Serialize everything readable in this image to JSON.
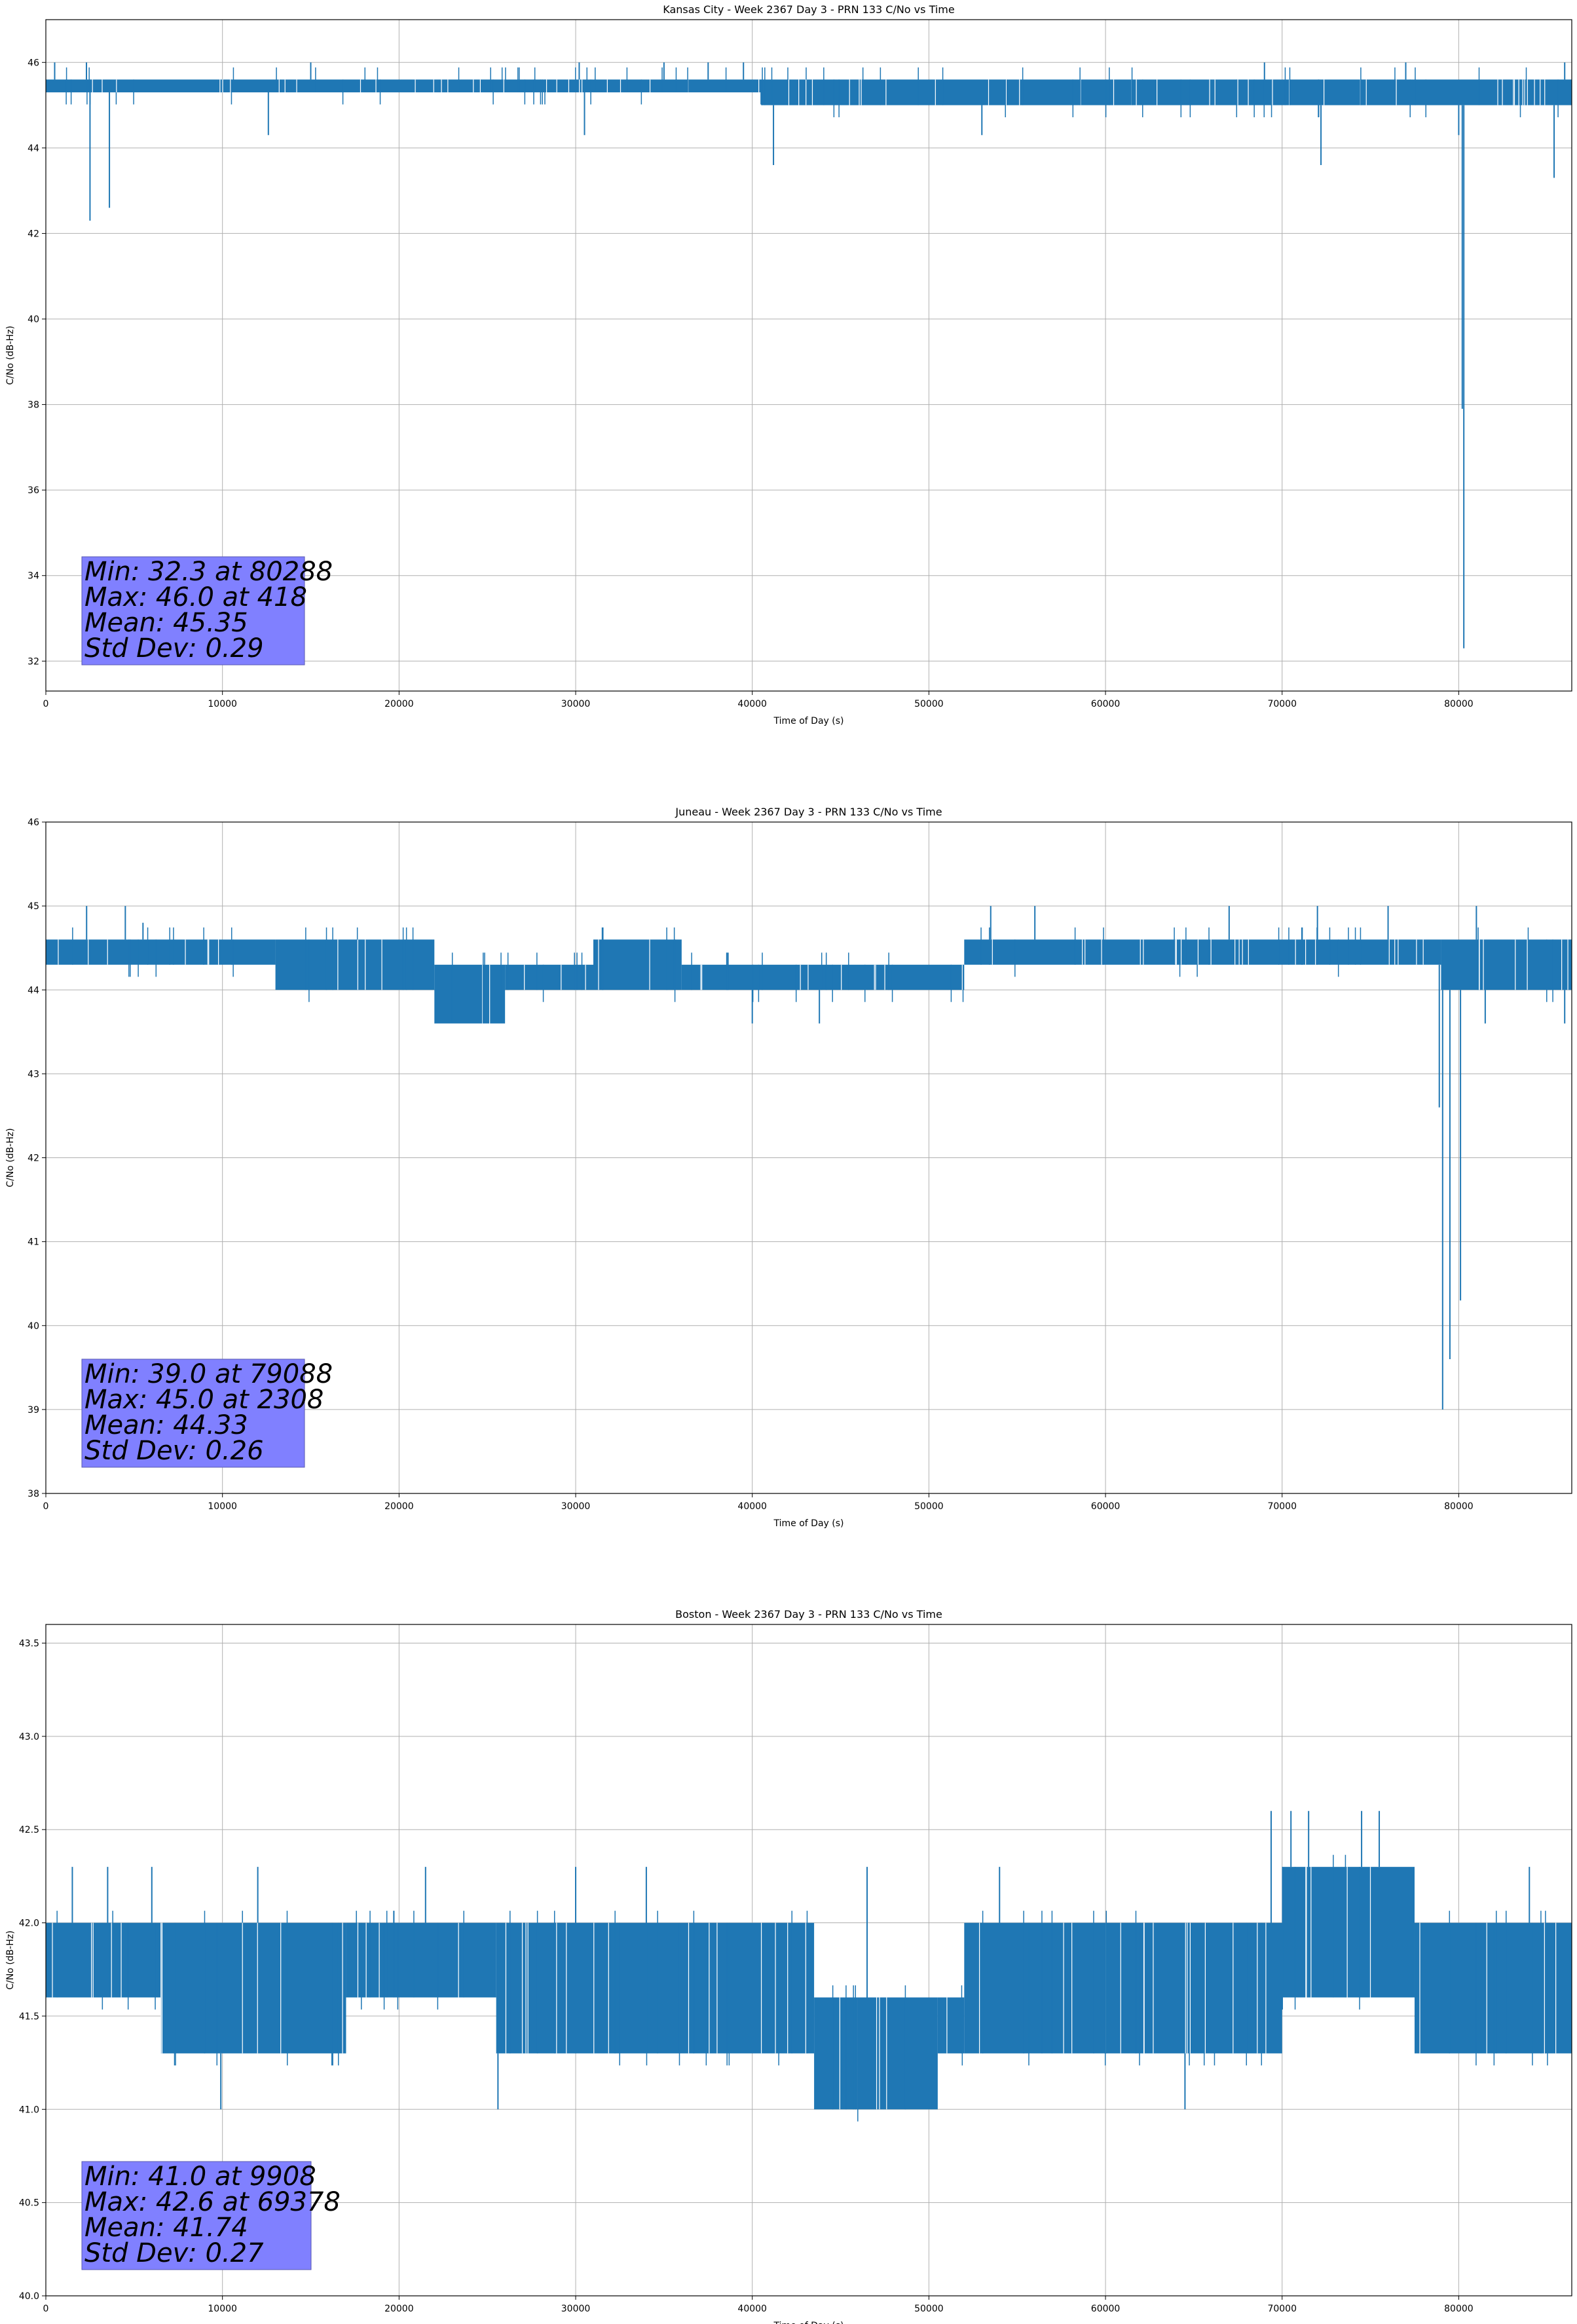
{
  "chart_data": [
    {
      "type": "line",
      "title": "Kansas City - Week 2367 Day 3 - PRN 133 C/No vs Time",
      "xlabel": "Time of Day (s)",
      "ylabel": "C/No (dB-Hz)",
      "xlim": [
        0,
        86400
      ],
      "ylim": [
        31.3,
        47.0
      ],
      "xticks": [
        0,
        10000,
        20000,
        30000,
        40000,
        50000,
        60000,
        70000,
        80000
      ],
      "yticks": [
        32,
        34,
        36,
        38,
        40,
        42,
        44,
        46
      ],
      "ytick_labels": [
        "32",
        "34",
        "36",
        "38",
        "40",
        "42",
        "44",
        "46"
      ],
      "grid": true,
      "series_color": "#1f77b4",
      "band_segments": [
        {
          "x0": 0,
          "x1": 40500,
          "lo": 45.3,
          "hi": 45.6
        },
        {
          "x0": 40500,
          "x1": 86400,
          "lo": 45.0,
          "hi": 45.6
        }
      ],
      "spikes": [
        {
          "x": 500,
          "y": 46.0
        },
        {
          "x": 2300,
          "y": 46.0
        },
        {
          "x": 2500,
          "y": 42.3
        },
        {
          "x": 3600,
          "y": 42.6
        },
        {
          "x": 12600,
          "y": 44.3
        },
        {
          "x": 15000,
          "y": 46.0
        },
        {
          "x": 30200,
          "y": 46.0
        },
        {
          "x": 30500,
          "y": 44.3
        },
        {
          "x": 35000,
          "y": 46.0
        },
        {
          "x": 37500,
          "y": 46.0
        },
        {
          "x": 39500,
          "y": 46.0
        },
        {
          "x": 41200,
          "y": 43.6
        },
        {
          "x": 53000,
          "y": 44.3
        },
        {
          "x": 69000,
          "y": 46.0
        },
        {
          "x": 72200,
          "y": 43.6
        },
        {
          "x": 77000,
          "y": 46.0
        },
        {
          "x": 80000,
          "y": 44.3
        },
        {
          "x": 80200,
          "y": 37.9
        },
        {
          "x": 80288,
          "y": 32.3
        },
        {
          "x": 85400,
          "y": 43.3
        },
        {
          "x": 86000,
          "y": 46.0
        }
      ],
      "stats": [
        "Min: 32.3 at 80288",
        "Max: 46.0 at 418",
        "Mean: 45.35",
        "Std Dev: 0.29"
      ]
    },
    {
      "type": "line",
      "title": "Juneau - Week 2367 Day 3 - PRN 133 C/No vs Time",
      "xlabel": "Time of Day (s)",
      "ylabel": "C/No (dB-Hz)",
      "xlim": [
        0,
        86400
      ],
      "ylim": [
        38,
        46
      ],
      "xticks": [
        0,
        10000,
        20000,
        30000,
        40000,
        50000,
        60000,
        70000,
        80000
      ],
      "yticks": [
        38,
        39,
        40,
        41,
        42,
        43,
        44,
        45,
        46
      ],
      "ytick_labels": [
        "38",
        "39",
        "40",
        "41",
        "42",
        "43",
        "44",
        "45",
        "46"
      ],
      "grid": true,
      "series_color": "#1f77b4",
      "band_segments": [
        {
          "x0": 0,
          "x1": 13000,
          "lo": 44.3,
          "hi": 44.6
        },
        {
          "x0": 13000,
          "x1": 22000,
          "lo": 44.0,
          "hi": 44.6
        },
        {
          "x0": 22000,
          "x1": 26000,
          "lo": 43.6,
          "hi": 44.3
        },
        {
          "x0": 26000,
          "x1": 31000,
          "lo": 44.0,
          "hi": 44.3
        },
        {
          "x0": 31000,
          "x1": 36000,
          "lo": 44.0,
          "hi": 44.6
        },
        {
          "x0": 36000,
          "x1": 52000,
          "lo": 44.0,
          "hi": 44.3
        },
        {
          "x0": 52000,
          "x1": 79000,
          "lo": 44.3,
          "hi": 44.6
        },
        {
          "x0": 79000,
          "x1": 86400,
          "lo": 44.0,
          "hi": 44.6
        }
      ],
      "spikes": [
        {
          "x": 2308,
          "y": 45.0
        },
        {
          "x": 4500,
          "y": 45.0
        },
        {
          "x": 5500,
          "y": 44.8
        },
        {
          "x": 22500,
          "y": 43.6
        },
        {
          "x": 40000,
          "y": 43.6
        },
        {
          "x": 43800,
          "y": 43.6
        },
        {
          "x": 53500,
          "y": 45.0
        },
        {
          "x": 56000,
          "y": 45.0
        },
        {
          "x": 67000,
          "y": 45.0
        },
        {
          "x": 72000,
          "y": 45.0
        },
        {
          "x": 76000,
          "y": 45.0
        },
        {
          "x": 78900,
          "y": 42.6
        },
        {
          "x": 79088,
          "y": 39.0
        },
        {
          "x": 79500,
          "y": 39.6
        },
        {
          "x": 80100,
          "y": 40.3
        },
        {
          "x": 81000,
          "y": 45.0
        },
        {
          "x": 81500,
          "y": 43.6
        },
        {
          "x": 86000,
          "y": 43.6
        }
      ],
      "stats": [
        "Min: 39.0 at 79088",
        "Max: 45.0 at 2308",
        "Mean: 44.33",
        "Std Dev: 0.26"
      ]
    },
    {
      "type": "line",
      "title": "Boston - Week 2367 Day 3 - PRN 133 C/No vs Time",
      "xlabel": "Time of Day (s)",
      "ylabel": "C/No (dB-Hz)",
      "xlim": [
        0,
        86400
      ],
      "ylim": [
        40.0,
        43.6
      ],
      "xticks": [
        0,
        10000,
        20000,
        30000,
        40000,
        50000,
        60000,
        70000,
        80000
      ],
      "yticks": [
        40.0,
        40.5,
        41.0,
        41.5,
        42.0,
        42.5,
        43.0,
        43.5
      ],
      "ytick_labels": [
        "40.0",
        "40.5",
        "41.0",
        "41.5",
        "42.0",
        "42.5",
        "43.0",
        "43.5"
      ],
      "grid": true,
      "series_color": "#1f77b4",
      "band_segments": [
        {
          "x0": 0,
          "x1": 6500,
          "lo": 41.6,
          "hi": 42.0
        },
        {
          "x0": 6500,
          "x1": 17000,
          "lo": 41.3,
          "hi": 42.0
        },
        {
          "x0": 17000,
          "x1": 25500,
          "lo": 41.6,
          "hi": 42.0
        },
        {
          "x0": 25500,
          "x1": 43500,
          "lo": 41.3,
          "hi": 42.0
        },
        {
          "x0": 43500,
          "x1": 50500,
          "lo": 41.0,
          "hi": 41.6
        },
        {
          "x0": 50500,
          "x1": 52000,
          "lo": 41.3,
          "hi": 41.6
        },
        {
          "x0": 52000,
          "x1": 70000,
          "lo": 41.3,
          "hi": 42.0
        },
        {
          "x0": 70000,
          "x1": 77500,
          "lo": 41.6,
          "hi": 42.3
        },
        {
          "x0": 77500,
          "x1": 86400,
          "lo": 41.3,
          "hi": 42.0
        }
      ],
      "spikes": [
        {
          "x": 1500,
          "y": 42.3
        },
        {
          "x": 3500,
          "y": 42.3
        },
        {
          "x": 6000,
          "y": 42.3
        },
        {
          "x": 9908,
          "y": 41.0
        },
        {
          "x": 12000,
          "y": 42.3
        },
        {
          "x": 21500,
          "y": 42.3
        },
        {
          "x": 25600,
          "y": 41.0
        },
        {
          "x": 30000,
          "y": 42.3
        },
        {
          "x": 34000,
          "y": 42.3
        },
        {
          "x": 46500,
          "y": 42.3
        },
        {
          "x": 54000,
          "y": 42.3
        },
        {
          "x": 64500,
          "y": 41.0
        },
        {
          "x": 69378,
          "y": 42.6
        },
        {
          "x": 70500,
          "y": 42.6
        },
        {
          "x": 71500,
          "y": 42.6
        },
        {
          "x": 74500,
          "y": 42.6
        },
        {
          "x": 75500,
          "y": 42.6
        },
        {
          "x": 84000,
          "y": 42.3
        }
      ],
      "stats": [
        "Min: 41.0 at 9908",
        "Max: 42.6 at 69378",
        "Mean: 41.74",
        "Std Dev: 0.27"
      ]
    }
  ]
}
